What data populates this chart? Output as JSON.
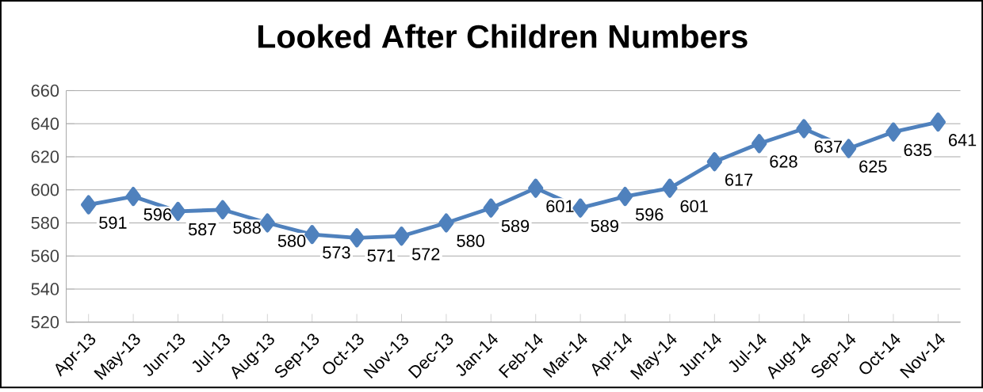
{
  "chart_data": {
    "type": "line",
    "title": "Looked After Children Numbers",
    "categories": [
      "Apr-13",
      "May-13",
      "Jun-13",
      "Jul-13",
      "Aug-13",
      "Sep-13",
      "Oct-13",
      "Nov-13",
      "Dec-13",
      "Jan-14",
      "Feb-14",
      "Mar-14",
      "Apr-14",
      "May-14",
      "Jun-14",
      "Jul-14",
      "Aug-14",
      "Sep-14",
      "Oct-14",
      "Nov-14"
    ],
    "values": [
      591,
      596,
      587,
      588,
      580,
      573,
      571,
      572,
      580,
      589,
      601,
      589,
      596,
      601,
      617,
      628,
      637,
      625,
      635,
      641
    ],
    "color": "#4f81bd",
    "marker": "diamond",
    "line_style": "solid",
    "data_labels": true,
    "grid": "y",
    "ylim": [
      520,
      660
    ],
    "yticks": [
      520,
      540,
      560,
      580,
      600,
      620,
      640,
      660
    ]
  }
}
